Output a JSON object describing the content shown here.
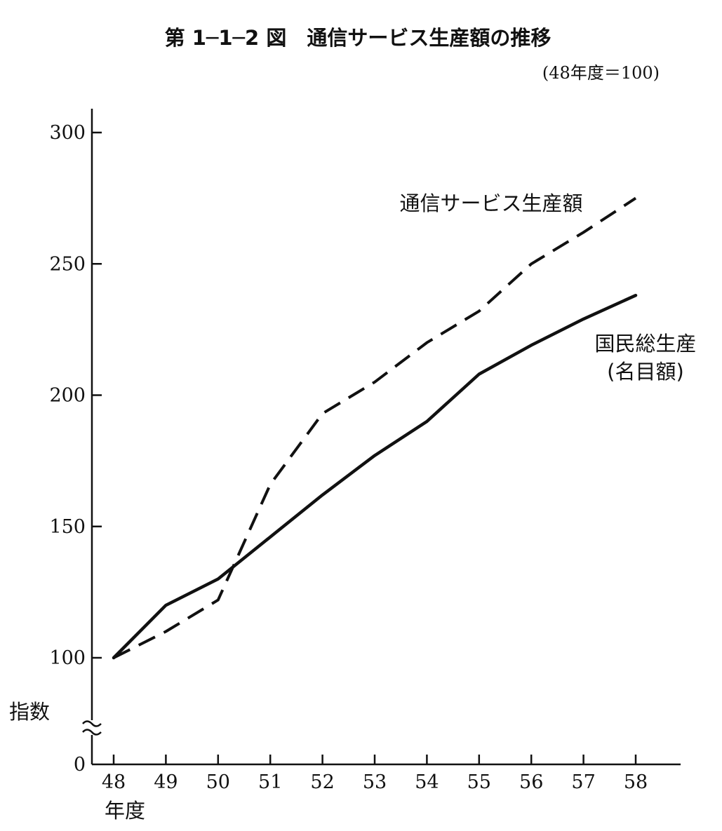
{
  "chart_data": {
    "type": "line",
    "title": "第 1─1─2 図　通信サービス生産額の推移",
    "subtitle": "(48年度＝100)",
    "xlabel": "年度",
    "ylabel": "指数",
    "x": [
      "48",
      "49",
      "50",
      "51",
      "52",
      "53",
      "54",
      "55",
      "56",
      "57",
      "58"
    ],
    "y_ticks": [
      "0",
      "100",
      "150",
      "200",
      "250",
      "300"
    ],
    "ylim": [
      100,
      300
    ],
    "y_axis_break": true,
    "grid": false,
    "series": [
      {
        "name": "通信サービス生産額",
        "label_lines": [
          "通信サービス生産額"
        ],
        "style": "dashed",
        "color": "#111111",
        "values": [
          100,
          110,
          122,
          166,
          193,
          205,
          220,
          232,
          250,
          262,
          275
        ]
      },
      {
        "name": "国民総生産 (名目額)",
        "label_lines": [
          "国民総生産",
          "(名目額)"
        ],
        "style": "solid",
        "color": "#111111",
        "values": [
          100,
          120,
          130,
          146,
          162,
          177,
          190,
          208,
          219,
          229,
          238
        ]
      }
    ]
  }
}
